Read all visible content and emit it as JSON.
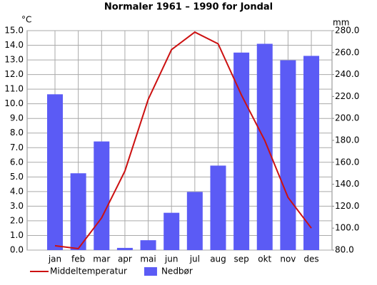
{
  "chart_data": {
    "type": "bar",
    "title": "Normaler 1961 – 1990 for Jondal",
    "y_label": "°C",
    "y2_label": "mm",
    "categories": [
      "jan",
      "feb",
      "mar",
      "apr",
      "mai",
      "jun",
      "jul",
      "aug",
      "sep",
      "okt",
      "nov",
      "des"
    ],
    "series": [
      {
        "name": "Middeltemperatur",
        "type": "line",
        "color": "#cc1111",
        "values": [
          0.3,
          0.1,
          2.2,
          5.4,
          10.3,
          13.7,
          14.9,
          14.1,
          10.6,
          7.5,
          3.6,
          1.5
        ]
      },
      {
        "name": "Nedbør",
        "type": "bar",
        "axis": "y2",
        "color": "#5b5bf5",
        "values": [
          222,
          150,
          179,
          82,
          89,
          114,
          133,
          157,
          260,
          268,
          253,
          257
        ]
      }
    ],
    "ylim": [
      0,
      15
    ],
    "yticks": [
      {
        "value": 0,
        "label": "0.0"
      },
      {
        "value": 1,
        "label": "1.0"
      },
      {
        "value": 2,
        "label": "2.0"
      },
      {
        "value": 3,
        "label": "3.0"
      },
      {
        "value": 4,
        "label": "4.0"
      },
      {
        "value": 5,
        "label": "5.0"
      },
      {
        "value": 6,
        "label": "6.0"
      },
      {
        "value": 7,
        "label": "7.0"
      },
      {
        "value": 8,
        "label": "8.0"
      },
      {
        "value": 9,
        "label": "9.0"
      },
      {
        "value": 10,
        "label": "10.0"
      },
      {
        "value": 11,
        "label": "11.0"
      },
      {
        "value": 12,
        "label": "12.0"
      },
      {
        "value": 13,
        "label": "13.0"
      },
      {
        "value": 14,
        "label": "14.0"
      },
      {
        "value": 15,
        "label": "15.0"
      }
    ],
    "y2lim": [
      80,
      280
    ],
    "y2ticks": [
      {
        "value": 80,
        "label": "80.0"
      },
      {
        "value": 100,
        "label": "100.0"
      },
      {
        "value": 120,
        "label": "120.0"
      },
      {
        "value": 140,
        "label": "140.0"
      },
      {
        "value": 160,
        "label": "160.0"
      },
      {
        "value": 180,
        "label": "180.0"
      },
      {
        "value": 200,
        "label": "200.0"
      },
      {
        "value": 220,
        "label": "220.0"
      },
      {
        "value": 240,
        "label": "240.0"
      },
      {
        "value": 260,
        "label": "260.0"
      },
      {
        "value": 280,
        "label": "280.0"
      }
    ],
    "grid": true,
    "legend": "bottom"
  }
}
